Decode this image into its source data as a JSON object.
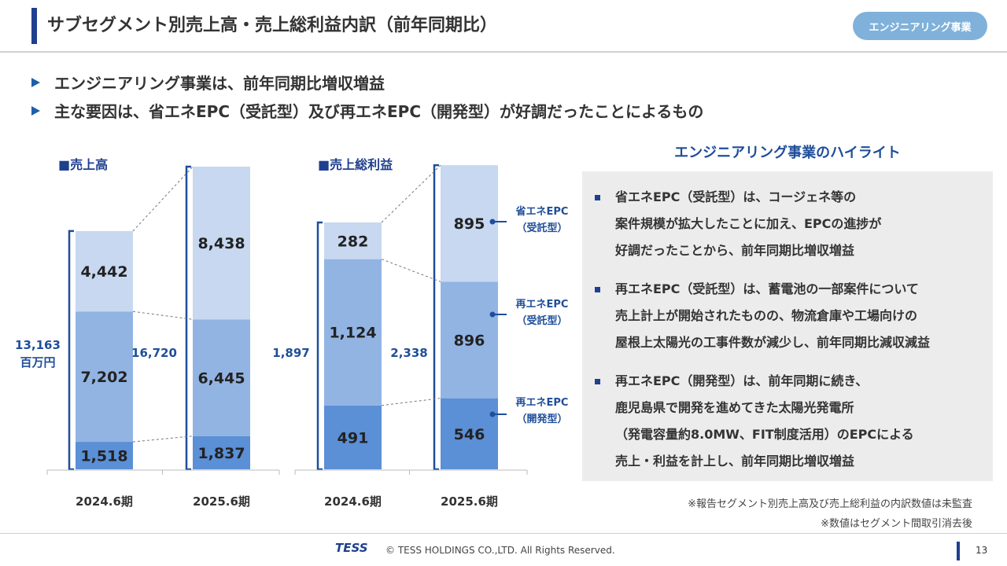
{
  "header": {
    "title": "サブセグメント別売上高・売上総利益内訳（前年同期比）",
    "badge": "エンジニアリング事業"
  },
  "bullets": [
    "エンジニアリング事業は、前年同期比増収増益",
    "主な要因は、省エネEPC（受託型）及び再エネEPC（開発型）が好調だったことによるもの"
  ],
  "chart_data": [
    {
      "type": "bar",
      "stacked": true,
      "title": "■売上高",
      "categories": [
        "2024.6期",
        "2025.6期"
      ],
      "series": [
        {
          "name": "再エネEPC（開発型）",
          "values": [
            1518,
            1837
          ]
        },
        {
          "name": "再エネEPC（受託型）",
          "values": [
            7202,
            6445
          ]
        },
        {
          "name": "省エネEPC（受託型）",
          "values": [
            4442,
            8438
          ]
        }
      ],
      "totals": [
        "13,163",
        "16,720"
      ],
      "unit": "百万円"
    },
    {
      "type": "bar",
      "stacked": true,
      "title": "■売上総利益",
      "categories": [
        "2024.6期",
        "2025.6期"
      ],
      "series": [
        {
          "name": "再エネEPC（開発型）",
          "values": [
            491,
            546
          ]
        },
        {
          "name": "再エネEPC（受託型）",
          "values": [
            1124,
            896
          ]
        },
        {
          "name": "省エネEPC（受託型）",
          "values": [
            282,
            895
          ]
        }
      ],
      "totals": [
        "1,897",
        "2,338"
      ]
    }
  ],
  "legend": [
    {
      "line1": "省エネEPC",
      "line2": "（受託型）"
    },
    {
      "line1": "再エネEPC",
      "line2": "（受託型）"
    },
    {
      "line1": "再エネEPC",
      "line2": "（開発型）"
    }
  ],
  "colors": {
    "dark": "#5b8fd6",
    "mid": "#92b4e3",
    "light": "#c7d8f0",
    "accent": "#1f4e9a"
  },
  "highlight": {
    "title": "エンジニアリング事業のハイライト",
    "items": [
      [
        "省エネEPC（受託型）は、コージェネ等の",
        "案件規模が拡大したことに加え、EPCの進捗が",
        "好調だったことから、前年同期比増収増益"
      ],
      [
        "再エネEPC（受託型）は、蓄電池の一部案件について",
        "売上計上が開始されたものの、物流倉庫や工場向けの",
        "屋根上太陽光の工事件数が減少し、前年同期比減収減益"
      ],
      [
        "再エネEPC（開発型）は、前年同期に続き、",
        "鹿児島県で開発を進めてきた太陽光発電所",
        "（発電容量約8.0MW、FIT制度活用）のEPCによる",
        "売上・利益を計上し、前年同期比増収増益"
      ]
    ]
  },
  "notes": [
    "※報告セグメント別売上高及び売上総利益の内訳数値は未監査",
    "※数値はセグメント間取引消去後"
  ],
  "footer": {
    "logo": "TESS",
    "copyright": "© TESS HOLDINGS CO.,LTD. All Rights Reserved.",
    "page": "13"
  }
}
